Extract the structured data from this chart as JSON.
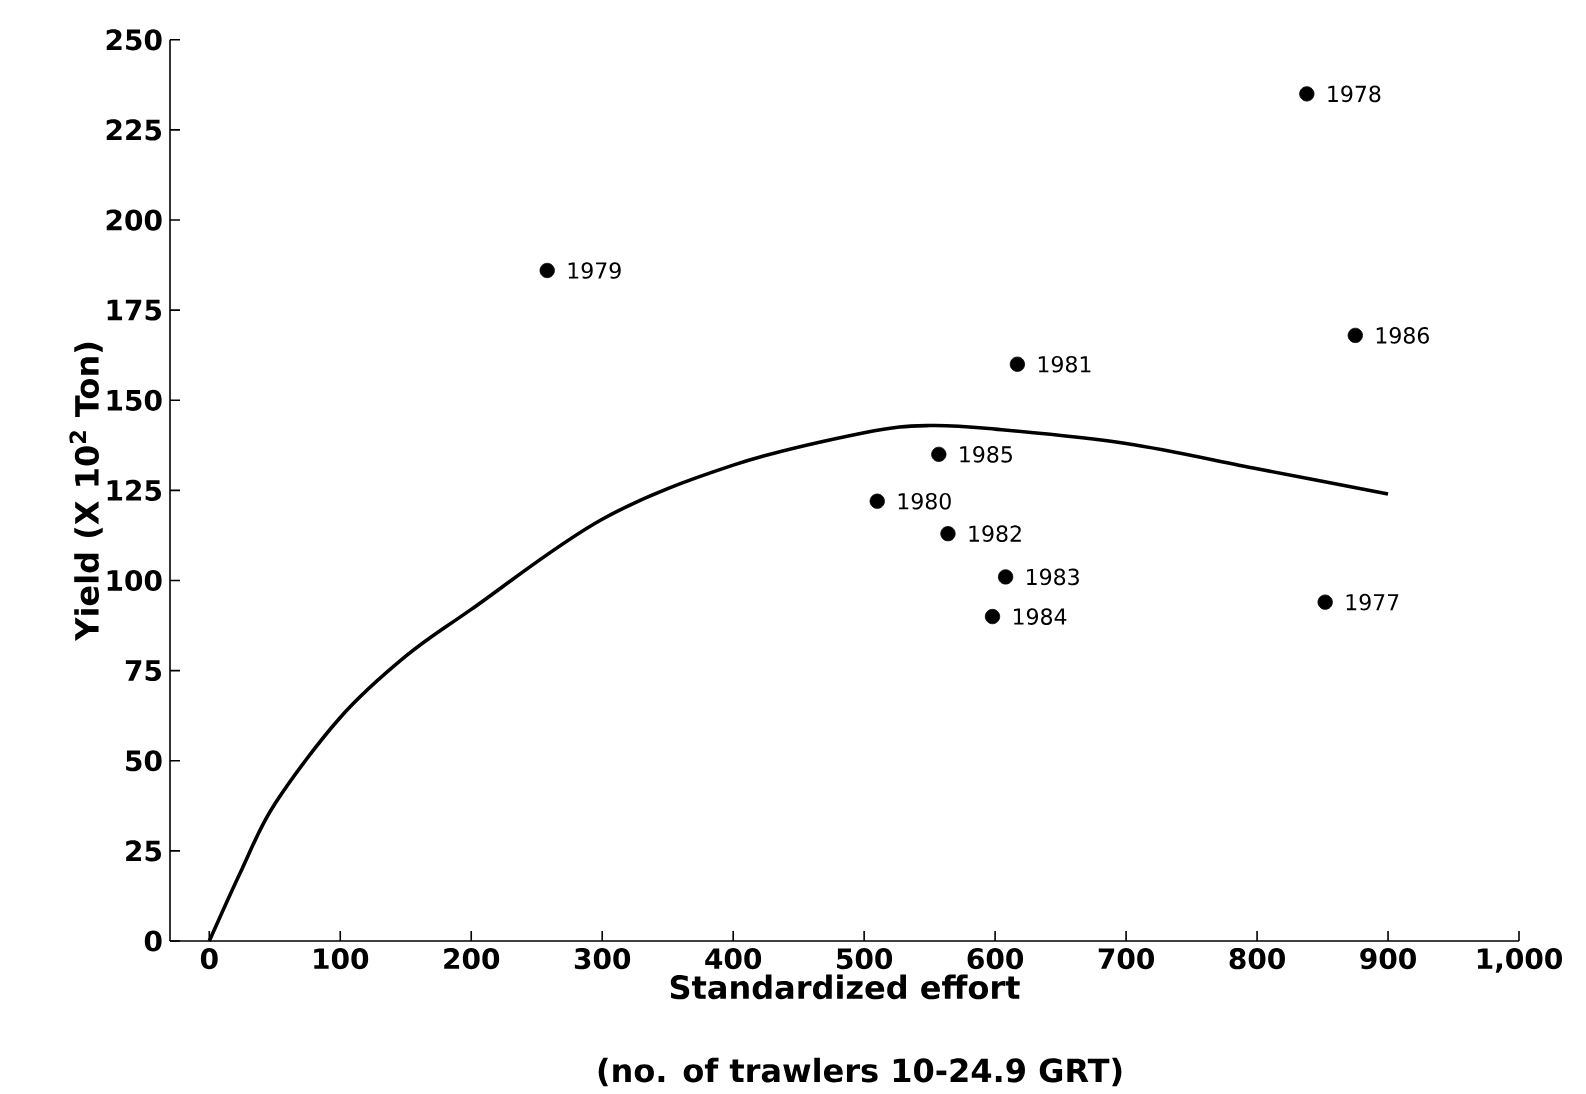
{
  "chart_data": {
    "type": "scatter",
    "xlabel": "Standardized effort",
    "ylabel": "Yield (X 10$^{2}$ Ton)",
    "xlim": [
      -30,
      1000
    ],
    "ylim": [
      0,
      250
    ],
    "xticks": [
      0,
      100,
      200,
      300,
      400,
      500,
      600,
      700,
      800,
      900,
      {
        "value": 1000,
        "label": "1,000"
      }
    ],
    "yticks": [
      0,
      25,
      50,
      75,
      100,
      125,
      150,
      175,
      200,
      225,
      250
    ],
    "series": [
      {
        "type": "line",
        "color": "#000000",
        "marker": "none",
        "x": [
          0,
          25,
          50,
          100,
          150,
          200,
          300,
          400,
          500,
          550,
          600,
          700,
          800,
          900
        ],
        "values": [
          0,
          20,
          38,
          62,
          79,
          92,
          117,
          132,
          141,
          143,
          142,
          138,
          131,
          124
        ]
      },
      {
        "color": "#000000",
        "marker": "circle",
        "x": [
          852,
          838,
          258,
          510,
          617,
          564,
          608,
          598,
          557,
          875
        ],
        "values": [
          94,
          235,
          186,
          122,
          160,
          113,
          101,
          90,
          135,
          168
        ]
      }
    ],
    "annotations": [
      {
        "text": "1977",
        "x": 852,
        "y": 94
      },
      {
        "text": "1978",
        "x": 838,
        "y": 235
      },
      {
        "text": "1979",
        "x": 258,
        "y": 186
      },
      {
        "text": "1980",
        "x": 510,
        "y": 122
      },
      {
        "text": "1981",
        "x": 617,
        "y": 160
      },
      {
        "text": "1982",
        "x": 564,
        "y": 113
      },
      {
        "text": "1983",
        "x": 608,
        "y": 101
      },
      {
        "text": "1984",
        "x": 598,
        "y": 90
      },
      {
        "text": "1985",
        "x": 557,
        "y": 135
      },
      {
        "text": "1986",
        "x": 875,
        "y": 168
      },
      "(no. of trawlers 10-24.9 GRT)"
    ]
  }
}
